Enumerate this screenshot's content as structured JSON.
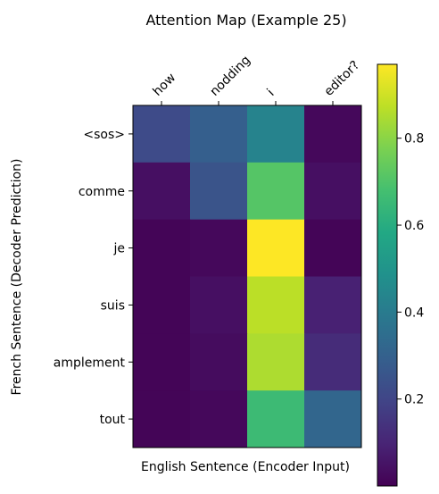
{
  "chart_data": {
    "type": "heatmap",
    "title": "Attention Map (Example 25)",
    "xlabel": "English Sentence (Encoder Input)",
    "ylabel": "French Sentence (Decoder Prediction)",
    "x_categories": [
      "how",
      "nodding",
      "i",
      "editor?"
    ],
    "y_categories": [
      "<sos>",
      "comme",
      "je",
      "suis",
      "amplement",
      "tout"
    ],
    "values": [
      [
        0.22,
        0.29,
        0.43,
        0.02
      ],
      [
        0.04,
        0.25,
        0.71,
        0.04
      ],
      [
        0.01,
        0.02,
        0.97,
        0.01
      ],
      [
        0.01,
        0.04,
        0.87,
        0.09
      ],
      [
        0.01,
        0.03,
        0.85,
        0.12
      ],
      [
        0.01,
        0.02,
        0.66,
        0.32
      ]
    ],
    "colormap": "viridis",
    "colorbar": {
      "range": [
        0.0,
        0.97
      ],
      "ticks": [
        0.2,
        0.4,
        0.6,
        0.8
      ],
      "tick_labels": [
        "0.2",
        "0.4",
        "0.6",
        "0.8"
      ]
    }
  }
}
